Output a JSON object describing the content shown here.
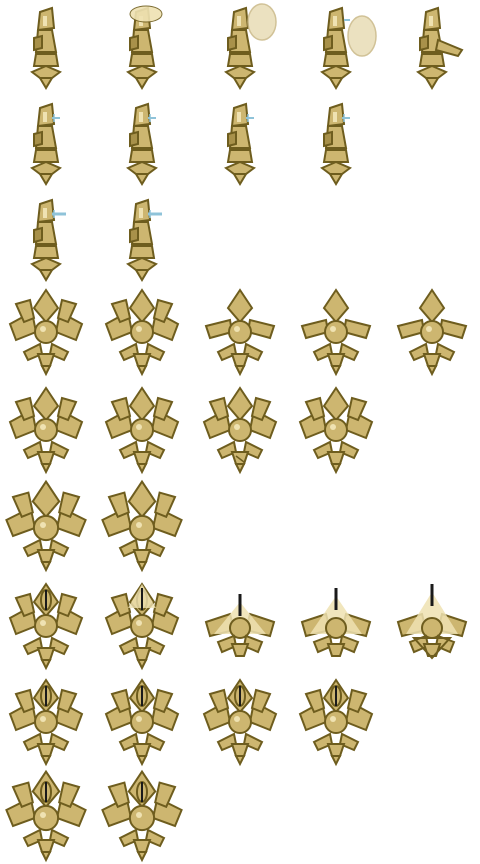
{
  "sheet": {
    "background": "#ffffff",
    "palette": {
      "outline": "#6e5d1e",
      "body": "#cdb670",
      "highlight": "#efe2b2",
      "shade": "#a8914a",
      "ice": "#8fc3d9",
      "slash": "#e8dcb6",
      "spike": "#1a1a1a"
    },
    "sprite_groups": [
      {
        "group": "knight-idle",
        "rows": [
          [
            "knight",
            "knight-wing-up",
            "knight-slash-1",
            "knight-slash-2",
            "knight-lunge"
          ],
          [
            "knight-ice",
            "knight-ice",
            "knight-ice",
            "knight-ice"
          ],
          [
            "knight-ice-strong",
            "knight-ice-strong"
          ]
        ]
      },
      {
        "group": "crystal-plant",
        "rows": [
          [
            "plant-wide",
            "plant-wide",
            "plant-flat",
            "plant-flat",
            "plant-small"
          ],
          [
            "plant-tall",
            "plant-tall",
            "plant-tall-cracked",
            "plant-tall"
          ],
          [
            "plant-big",
            "plant-big"
          ]
        ]
      },
      {
        "group": "crystal-plant-eye",
        "rows": [
          [
            "plant-eye",
            "plant-eye-glow",
            "plant-beam-1",
            "plant-beam-2",
            "plant-beam-3"
          ],
          [
            "plant-eye-tall",
            "plant-eye-tall",
            "plant-eye-tall",
            "plant-eye-tall"
          ],
          [
            "plant-eye-big",
            "plant-eye-big"
          ]
        ]
      }
    ]
  }
}
